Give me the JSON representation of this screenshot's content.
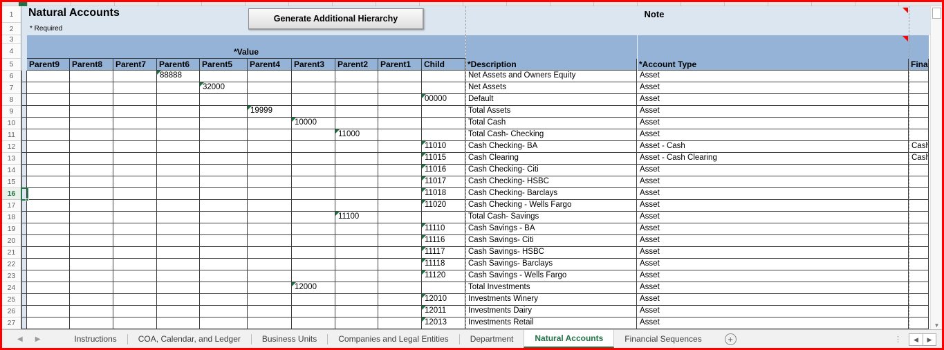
{
  "title": "Natural Accounts",
  "required_note": "* Required",
  "button_label": "Generate Additional Hierarchy",
  "note_header": "Note",
  "selected_cell_row": 16,
  "colors": {
    "header_blue": "#95B3D7",
    "light_blue": "#DCE6F1",
    "active_tab_green": "#217346",
    "flag_green": "#1E7145",
    "screenshot_border_red": "#FF0000"
  },
  "grid": {
    "value_group_header": "*Value",
    "value_columns": [
      "Parent9",
      "Parent8",
      "Parent7",
      "Parent6",
      "Parent5",
      "Parent4",
      "Parent3",
      "Parent2",
      "Parent1",
      "Child"
    ],
    "description_header": "*Description",
    "account_type_header": "*Account Type",
    "financial_header_clipped": "Fina",
    "row_numbers_visible": [
      1,
      27
    ],
    "rows": [
      {
        "n": 6,
        "col": "Parent6",
        "value": "88888",
        "description": "Net Assets and Owners Equity",
        "account_type": "Asset",
        "financial": ""
      },
      {
        "n": 7,
        "col": "Parent5",
        "value": "32000",
        "description": "Net Assets",
        "account_type": "Asset",
        "financial": ""
      },
      {
        "n": 8,
        "col": "Child",
        "value": "00000",
        "description": "Default",
        "account_type": "Asset",
        "financial": ""
      },
      {
        "n": 9,
        "col": "Parent4",
        "value": "19999",
        "description": "Total Assets",
        "account_type": "Asset",
        "financial": ""
      },
      {
        "n": 10,
        "col": "Parent3",
        "value": "10000",
        "description": "Total Cash",
        "account_type": "Asset",
        "financial": ""
      },
      {
        "n": 11,
        "col": "Parent2",
        "value": "11000",
        "description": "Total Cash- Checking",
        "account_type": "Asset",
        "financial": ""
      },
      {
        "n": 12,
        "col": "Child",
        "value": "11010",
        "description": "Cash Checking- BA",
        "account_type": "Asset - Cash",
        "financial": "Cash"
      },
      {
        "n": 13,
        "col": "Child",
        "value": "11015",
        "description": "Cash Clearing",
        "account_type": "Asset - Cash Clearing",
        "financial": "Cash"
      },
      {
        "n": 14,
        "col": "Child",
        "value": "11016",
        "description": "Cash Checking- Citi",
        "account_type": "Asset",
        "financial": ""
      },
      {
        "n": 15,
        "col": "Child",
        "value": "11017",
        "description": "Cash Checking- HSBC",
        "account_type": "Asset",
        "financial": ""
      },
      {
        "n": 16,
        "col": "Child",
        "value": "11018",
        "description": "Cash Checking- Barclays",
        "account_type": "Asset",
        "financial": ""
      },
      {
        "n": 17,
        "col": "Child",
        "value": "11020",
        "description": "Cash Checking - Wells Fargo",
        "account_type": "Asset",
        "financial": ""
      },
      {
        "n": 18,
        "col": "Parent2",
        "value": "11100",
        "description": "Total Cash- Savings",
        "account_type": "Asset",
        "financial": ""
      },
      {
        "n": 19,
        "col": "Child",
        "value": "11110",
        "description": "Cash Savings - BA",
        "account_type": "Asset",
        "financial": ""
      },
      {
        "n": 20,
        "col": "Child",
        "value": "11116",
        "description": "Cash Savings- Citi",
        "account_type": "Asset",
        "financial": ""
      },
      {
        "n": 21,
        "col": "Child",
        "value": "11117",
        "description": "Cash Savings- HSBC",
        "account_type": "Asset",
        "financial": ""
      },
      {
        "n": 22,
        "col": "Child",
        "value": "11118",
        "description": "Cash Savings- Barclays",
        "account_type": "Asset",
        "financial": ""
      },
      {
        "n": 23,
        "col": "Child",
        "value": "11120",
        "description": "Cash Savings - Wells Fargo",
        "account_type": "Asset",
        "financial": ""
      },
      {
        "n": 24,
        "col": "Parent3",
        "value": "12000",
        "description": "Total Investments",
        "account_type": "Asset",
        "financial": ""
      },
      {
        "n": 25,
        "col": "Child",
        "value": "12010",
        "description": "Investments Winery",
        "account_type": "Asset",
        "financial": ""
      },
      {
        "n": 26,
        "col": "Child",
        "value": "12011",
        "description": "Investments Dairy",
        "account_type": "Asset",
        "financial": ""
      },
      {
        "n": 27,
        "col": "Child",
        "value": "12013",
        "description": "Investments Retail",
        "account_type": "Asset",
        "financial": ""
      }
    ]
  },
  "tabs": {
    "items": [
      {
        "label": "Instructions",
        "active": false
      },
      {
        "label": "COA, Calendar, and Ledger",
        "active": false
      },
      {
        "label": "Business Units",
        "active": false
      },
      {
        "label": "Companies and Legal Entities",
        "active": false
      },
      {
        "label": "Department",
        "active": false
      },
      {
        "label": "Natural Accounts",
        "active": true
      },
      {
        "label": "Financial Sequences",
        "active": false
      }
    ],
    "add_sheet_glyph": "+"
  }
}
